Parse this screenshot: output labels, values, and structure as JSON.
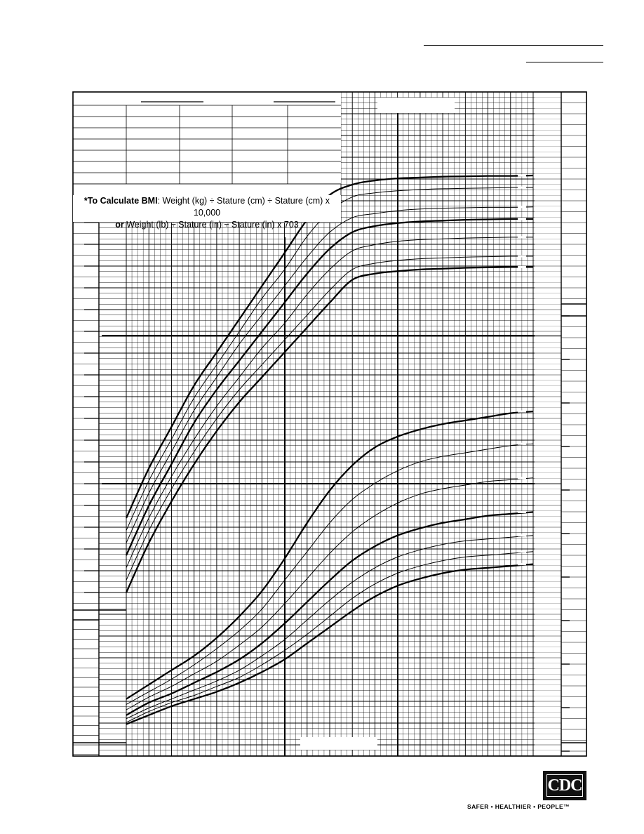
{
  "header": {
    "name_line": "",
    "record_line": ""
  },
  "bmi_note": {
    "line1_bold": "*To Calculate BMI",
    "line1_rest": ": Weight (kg) ÷ Stature (cm) ÷ Stature (cm) x 10,000",
    "line2_bold": "or",
    "line2_rest": " Weight (lb) ÷ Stature (in) ÷ Stature (in) x 703"
  },
  "logo": {
    "text": "CDC",
    "tagline": "SAFER • HEALTHIER • PEOPLE™"
  },
  "chart_data": [
    {
      "type": "line",
      "title": "",
      "xlabel": "",
      "ylabel": "",
      "x": [
        2,
        3,
        4,
        5,
        6,
        7,
        8,
        9,
        10,
        11,
        12,
        13,
        14,
        15,
        16,
        17,
        18,
        19,
        20
      ],
      "xlim": [
        2,
        20
      ],
      "ylim": [
        0,
        100
      ],
      "grid": true,
      "series": [
        {
          "weight": "bold",
          "values": [
            19,
            31,
            41,
            51,
            59,
            67,
            75,
            83,
            91,
            97,
            99.5,
            100.5,
            101,
            101.2,
            101.4,
            101.5,
            101.6,
            101.6,
            101.7
          ]
        },
        {
          "weight": "thin",
          "values": [
            16,
            28,
            38,
            48,
            56,
            64,
            72,
            79,
            87,
            93,
            96.5,
            97.5,
            98,
            98.3,
            98.5,
            98.6,
            98.7,
            98.8,
            98.8
          ]
        },
        {
          "weight": "thin",
          "values": [
            13,
            25,
            35,
            45,
            53,
            61,
            68,
            75,
            82,
            88,
            91.5,
            92.5,
            93.2,
            93.6,
            93.8,
            93.9,
            94,
            94,
            94.1
          ]
        },
        {
          "weight": "bold",
          "values": [
            10,
            22,
            32,
            42,
            50,
            57,
            64,
            71,
            78,
            84,
            88,
            89.5,
            90.2,
            90.6,
            90.8,
            91,
            91.1,
            91.2,
            91.2
          ]
        },
        {
          "weight": "thin",
          "values": [
            7,
            19,
            29,
            38,
            46,
            53,
            60,
            66,
            73,
            79,
            83.5,
            85,
            85.8,
            86.2,
            86.4,
            86.6,
            86.7,
            86.8,
            86.8
          ]
        },
        {
          "weight": "thin",
          "values": [
            4,
            16,
            26,
            35,
            43,
            50,
            56,
            62,
            68,
            74,
            79,
            80.5,
            81.2,
            81.6,
            81.8,
            82,
            82.1,
            82.2,
            82.2
          ]
        },
        {
          "weight": "bold",
          "values": [
            1,
            13,
            23,
            32,
            40,
            47,
            53,
            59,
            65,
            71,
            76.5,
            78,
            78.6,
            79,
            79.2,
            79.4,
            79.5,
            79.6,
            79.6
          ]
        }
      ]
    },
    {
      "type": "line",
      "title": "",
      "xlabel": "",
      "ylabel": "",
      "x": [
        2,
        3,
        4,
        5,
        6,
        7,
        8,
        9,
        10,
        11,
        12,
        13,
        14,
        15,
        16,
        17,
        18,
        19,
        20
      ],
      "xlim": [
        2,
        20
      ],
      "ylim": [
        0,
        100
      ],
      "grid": true,
      "series": [
        {
          "weight": "bold",
          "values": [
            11,
            15,
            19,
            23,
            28,
            34,
            41,
            50,
            60,
            69,
            76,
            81,
            84,
            86,
            87.5,
            88.5,
            89.5,
            90.5,
            91
          ]
        },
        {
          "weight": "thin",
          "values": [
            9.5,
            13,
            16.5,
            20.5,
            25,
            30,
            36,
            44,
            52,
            60,
            66.5,
            71,
            74.5,
            77,
            78.5,
            79.5,
            80.5,
            81.5,
            82
          ]
        },
        {
          "weight": "thin",
          "values": [
            8,
            11.5,
            14.5,
            18,
            21.5,
            26,
            31,
            37.5,
            44.5,
            51.5,
            57.5,
            62,
            65.5,
            68,
            69.5,
            70.5,
            71.5,
            72,
            72.5
          ]
        },
        {
          "weight": "bold",
          "values": [
            6.5,
            10,
            12.5,
            15.5,
            18.5,
            22,
            26.5,
            32,
            38,
            44,
            49.5,
            53.5,
            56.5,
            58.5,
            60,
            61,
            62,
            62.5,
            63
          ]
        },
        {
          "weight": "thin",
          "values": [
            5.5,
            8.5,
            11,
            13.5,
            16,
            19,
            23,
            27.5,
            33,
            38.5,
            43.5,
            47.5,
            50.5,
            52.5,
            54,
            55,
            55.5,
            56,
            56.5
          ]
        },
        {
          "weight": "thin",
          "values": [
            4.5,
            7.5,
            10,
            12,
            14.5,
            17,
            20.5,
            24.5,
            29,
            34,
            39,
            43,
            46,
            48,
            49.5,
            50.5,
            51,
            51.5,
            52
          ]
        },
        {
          "weight": "bold",
          "values": [
            4,
            6.5,
            9,
            11,
            13,
            15.5,
            18.5,
            22,
            26.5,
            31,
            35.5,
            39.5,
            42.5,
            44.5,
            46,
            47,
            47.5,
            48,
            48.5
          ]
        }
      ]
    }
  ]
}
